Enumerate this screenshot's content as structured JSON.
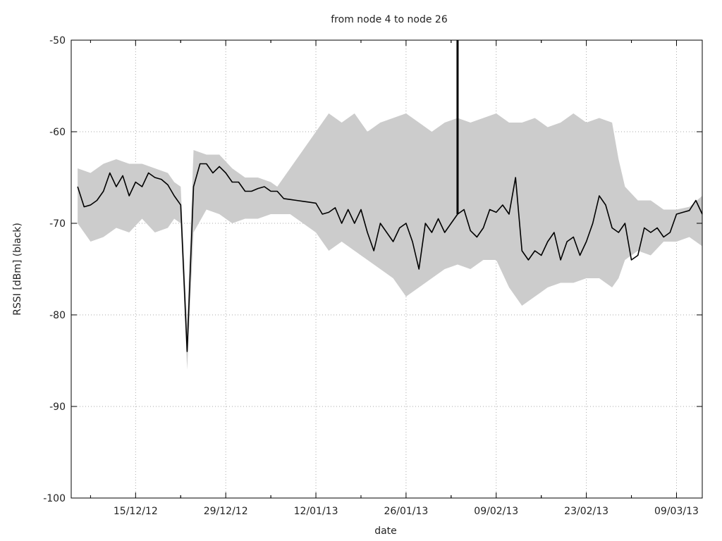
{
  "chart_data": {
    "type": "area",
    "title": "from node 4 to node 26",
    "xlabel": "date",
    "ylabel": "RSSI [dBm] (black)",
    "ylim": [
      -100,
      -50
    ],
    "xlim": [
      "2012-12-05",
      "2013-03-13"
    ],
    "y_ticks": [
      -100,
      -90,
      -80,
      -70,
      -60,
      -50
    ],
    "y_tick_labels": [
      "-100",
      "-90",
      "-80",
      "-70",
      "-60",
      "-50"
    ],
    "x_ticks": [
      "2012-12-15",
      "2012-12-29",
      "2013-01-12",
      "2013-01-26",
      "2013-02-09",
      "2013-02-23",
      "2013-03-09"
    ],
    "x_tick_labels": [
      "15/12/12",
      "29/12/12",
      "12/01/13",
      "26/01/13",
      "09/02/13",
      "23/02/13",
      "09/03/13"
    ],
    "grid": true,
    "colors": {
      "line": "#000000",
      "band": "#cccccc",
      "grid": "#aaaaaa",
      "axis": "#000000"
    },
    "series": [
      {
        "role": "mean",
        "x": [
          "2012-12-06",
          "2012-12-07",
          "2012-12-08",
          "2012-12-09",
          "2012-12-10",
          "2012-12-11",
          "2012-12-12",
          "2012-12-13",
          "2012-12-14",
          "2012-12-15",
          "2012-12-16",
          "2012-12-17",
          "2012-12-18",
          "2012-12-19",
          "2012-12-20",
          "2012-12-21",
          "2012-12-22",
          "2012-12-23",
          "2012-12-24",
          "2012-12-25",
          "2012-12-26",
          "2012-12-27",
          "2012-12-28",
          "2012-12-29",
          "2012-12-30",
          "2012-12-31",
          "2013-01-01",
          "2013-01-02",
          "2013-01-03",
          "2013-01-04",
          "2013-01-05",
          "2013-01-06",
          "2013-01-07",
          "2013-01-08",
          "2013-01-09",
          "2013-01-10",
          "2013-01-11",
          "2013-01-12",
          "2013-01-13",
          "2013-01-14",
          "2013-01-15",
          "2013-01-16",
          "2013-01-17",
          "2013-01-18",
          "2013-01-19",
          "2013-01-20",
          "2013-01-21",
          "2013-01-22",
          "2013-01-23",
          "2013-01-24",
          "2013-01-25",
          "2013-01-26",
          "2013-01-27",
          "2013-01-28",
          "2013-01-29",
          "2013-01-30",
          "2013-01-31",
          "2013-02-01",
          "2013-02-02",
          "2013-02-03",
          "2013-02-04",
          "2013-02-05",
          "2013-02-06",
          "2013-02-07",
          "2013-02-08",
          "2013-02-09",
          "2013-02-10",
          "2013-02-11",
          "2013-02-12",
          "2013-02-13",
          "2013-02-14",
          "2013-02-15",
          "2013-02-16",
          "2013-02-17",
          "2013-02-18",
          "2013-02-19",
          "2013-02-20",
          "2013-02-21",
          "2013-02-22",
          "2013-02-23",
          "2013-02-24",
          "2013-02-25",
          "2013-02-26",
          "2013-02-27",
          "2013-02-28",
          "2013-03-01",
          "2013-03-02",
          "2013-03-03",
          "2013-03-04",
          "2013-03-05",
          "2013-03-06",
          "2013-03-07",
          "2013-03-08",
          "2013-03-09",
          "2013-03-10",
          "2013-03-11",
          "2013-03-12",
          "2013-03-13"
        ],
        "y": [
          -66,
          -68.2,
          -68,
          -67.5,
          -66.5,
          -64.5,
          -66,
          -64.8,
          -67,
          -65.5,
          -66,
          -64.5,
          -65,
          -65.2,
          -65.8,
          -67,
          -68,
          -84,
          -66,
          -63.5,
          -63.5,
          -64.5,
          -63.8,
          -64.5,
          -65.5,
          -65.5,
          -66.5,
          -66.5,
          -66.2,
          -66,
          -66.5,
          -66.5,
          -67.3,
          -67.4,
          -67.5,
          -67.6,
          -67.7,
          -67.8,
          -69,
          -68.8,
          -68.3,
          -70,
          -68.5,
          -70,
          -68.5,
          -71,
          -73,
          -70,
          -71,
          -72,
          -70.5,
          -70,
          -72,
          -75,
          -70,
          -71,
          -69.5,
          -71,
          -70,
          -69,
          -68.5,
          -70.8,
          -71.5,
          -70.5,
          -68.5,
          -68.8,
          -68,
          -69,
          -65,
          -73,
          -74,
          -73,
          -73.5,
          -72,
          -71,
          -74,
          -72,
          -71.5,
          -73.5,
          -72,
          -70,
          -67,
          -68,
          -70.5,
          -71,
          -70,
          -74,
          -73.5,
          -70.5,
          -71,
          -70.5,
          -71.5,
          -71,
          -69,
          -68.8,
          -68.6,
          -67.5,
          -69
        ]
      },
      {
        "role": "band",
        "x": [
          "2012-12-06",
          "2012-12-08",
          "2012-12-10",
          "2012-12-12",
          "2012-12-14",
          "2012-12-16",
          "2012-12-18",
          "2012-12-20",
          "2012-12-21",
          "2012-12-22",
          "2012-12-23",
          "2012-12-24",
          "2012-12-26",
          "2012-12-28",
          "2012-12-30",
          "2013-01-01",
          "2013-01-03",
          "2013-01-05",
          "2013-01-06",
          "2013-01-08",
          "2013-01-10",
          "2013-01-12",
          "2013-01-14",
          "2013-01-16",
          "2013-01-18",
          "2013-01-20",
          "2013-01-22",
          "2013-01-24",
          "2013-01-26",
          "2013-01-28",
          "2013-01-30",
          "2013-02-01",
          "2013-02-03",
          "2013-02-05",
          "2013-02-07",
          "2013-02-09",
          "2013-02-11",
          "2013-02-13",
          "2013-02-15",
          "2013-02-17",
          "2013-02-19",
          "2013-02-21",
          "2013-02-23",
          "2013-02-25",
          "2013-02-27",
          "2013-02-28",
          "2013-03-01",
          "2013-03-03",
          "2013-03-05",
          "2013-03-07",
          "2013-03-09",
          "2013-03-11",
          "2013-03-13"
        ],
        "upper": [
          -64,
          -64.5,
          -63.5,
          -63,
          -63.5,
          -63.5,
          -64,
          -64.5,
          -65.5,
          -66,
          -81,
          -62,
          -62.5,
          -62.5,
          -64,
          -65,
          -65,
          -65.5,
          -66,
          -64,
          -62,
          -60,
          -58,
          -59,
          -58,
          -60,
          -59,
          -58.5,
          -58,
          -59,
          -60,
          -59,
          -58.5,
          -59,
          -58.5,
          -58,
          -59,
          -59,
          -58.5,
          -59.5,
          -59,
          -58,
          -59,
          -58.5,
          -59,
          -63,
          -66,
          -67.5,
          -67.5,
          -68.5,
          -68.5,
          -68.2,
          -67
        ],
        "lower": [
          -70,
          -72,
          -71.5,
          -70.5,
          -71,
          -69.5,
          -71,
          -70.5,
          -69.5,
          -70,
          -86,
          -71,
          -68.5,
          -69,
          -70,
          -69.5,
          -69.5,
          -69,
          -69,
          -69,
          -70,
          -71,
          -73,
          -72,
          -73,
          -74,
          -75,
          -76,
          -78,
          -77,
          -76,
          -75,
          -74.5,
          -75,
          -74,
          -74,
          -77,
          -79,
          -78,
          -77,
          -76.5,
          -76.5,
          -76,
          -76,
          -77,
          -76,
          -74,
          -73,
          -73.5,
          -72,
          -72,
          -71.5,
          -72.5
        ]
      },
      {
        "role": "spike",
        "x": [
          "2013-02-03",
          "2013-02-03"
        ],
        "y": [
          -69,
          -50
        ]
      }
    ]
  }
}
